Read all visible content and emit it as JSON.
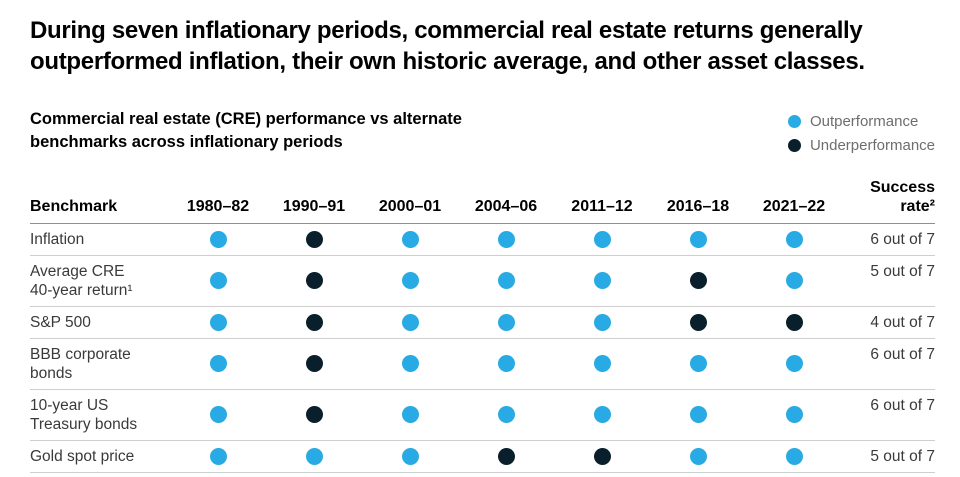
{
  "title": "During seven inflationary periods, commercial real estate returns generally outperformed inflation, their own historic average, and other asset classes.",
  "title_lines": [
    "During seven inflationary periods, commercial real estate returns generally",
    "outperformed inflation, their own historic average, and other asset classes."
  ],
  "subtitle_lines": [
    "Commercial real estate (CRE) performance vs alternate",
    "benchmarks across inflationary periods"
  ],
  "legend": {
    "items": [
      {
        "key": "out",
        "label": "Outperformance",
        "color": "#28ABE4"
      },
      {
        "key": "under",
        "label": "Underperformance",
        "color": "#0A1F2C"
      }
    ]
  },
  "chart_data": {
    "type": "table",
    "title": "Commercial real estate (CRE) performance vs alternate benchmarks across inflationary periods",
    "legend": [
      {
        "label": "Outperformance",
        "color": "#28ABE4"
      },
      {
        "label": "Underperformance",
        "color": "#0A1F2C"
      }
    ],
    "columns": [
      "Benchmark",
      "1980–82",
      "1990–91",
      "2000–01",
      "2004–06",
      "2011–12",
      "2016–18",
      "2021–22",
      "Success rate²"
    ],
    "periods": [
      "1980–82",
      "1990–91",
      "2000–01",
      "2004–06",
      "2011–12",
      "2016–18",
      "2021–22"
    ],
    "rows": [
      {
        "benchmark": "Inflation",
        "benchmark_lines": [
          "Inflation"
        ],
        "results": [
          "out",
          "under",
          "out",
          "out",
          "out",
          "out",
          "out"
        ],
        "success_rate": "6 out of 7"
      },
      {
        "benchmark": "Average CRE 40-year return¹",
        "benchmark_lines": [
          "Average CRE",
          "40-year return¹"
        ],
        "results": [
          "out",
          "under",
          "out",
          "out",
          "out",
          "under",
          "out"
        ],
        "success_rate": "5 out of 7"
      },
      {
        "benchmark": "S&P 500",
        "benchmark_lines": [
          "S&P 500"
        ],
        "results": [
          "out",
          "under",
          "out",
          "out",
          "out",
          "under",
          "under"
        ],
        "success_rate": "4 out of 7"
      },
      {
        "benchmark": "BBB corporate bonds",
        "benchmark_lines": [
          "BBB corporate",
          "bonds"
        ],
        "results": [
          "out",
          "under",
          "out",
          "out",
          "out",
          "out",
          "out"
        ],
        "success_rate": "6 out of 7"
      },
      {
        "benchmark": "10-year US Treasury bonds",
        "benchmark_lines": [
          "10-year US",
          "Treasury bonds"
        ],
        "results": [
          "out",
          "under",
          "out",
          "out",
          "out",
          "out",
          "out"
        ],
        "success_rate": "6 out of 7"
      },
      {
        "benchmark": "Gold spot price",
        "benchmark_lines": [
          "Gold spot price"
        ],
        "results": [
          "out",
          "out",
          "out",
          "under",
          "under",
          "out",
          "out"
        ],
        "success_rate": "5 out of 7"
      }
    ]
  }
}
